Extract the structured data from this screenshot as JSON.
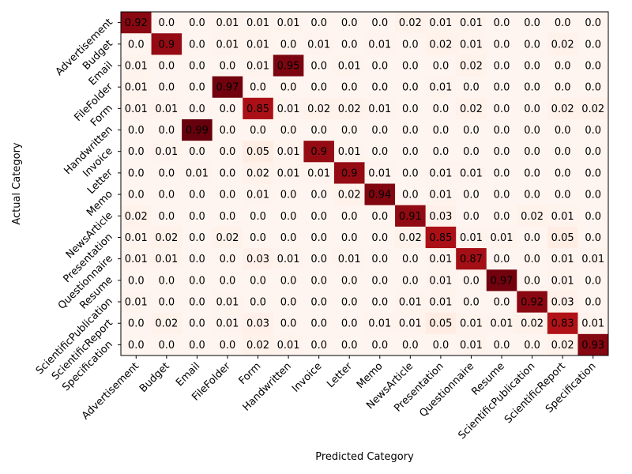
{
  "chart_data": {
    "type": "heatmap",
    "title": "",
    "xlabel": "Predicted Category",
    "ylabel": "Actual Category",
    "categories": [
      "Advertisement",
      "Budget",
      "Email",
      "FileFolder",
      "Form",
      "Handwritten",
      "Invoice",
      "Letter",
      "Memo",
      "NewsArticle",
      "Presentation",
      "Questionnaire",
      "Resume",
      "ScientificPublication",
      "ScientificReport",
      "Specification"
    ],
    "values": [
      [
        0.92,
        0.0,
        0.0,
        0.01,
        0.01,
        0.01,
        0.0,
        0.0,
        0.0,
        0.02,
        0.01,
        0.01,
        0.0,
        0.0,
        0.0,
        0.0
      ],
      [
        0.0,
        0.9,
        0.0,
        0.01,
        0.01,
        0.0,
        0.01,
        0.0,
        0.01,
        0.0,
        0.02,
        0.01,
        0.0,
        0.0,
        0.02,
        0.0
      ],
      [
        0.01,
        0.0,
        0.0,
        0.0,
        0.01,
        0.95,
        0.0,
        0.01,
        0.0,
        0.0,
        0.0,
        0.02,
        0.0,
        0.0,
        0.0,
        0.0
      ],
      [
        0.01,
        0.0,
        0.0,
        0.97,
        0.0,
        0.0,
        0.0,
        0.0,
        0.0,
        0.0,
        0.01,
        0.0,
        0.0,
        0.0,
        0.0,
        0.0
      ],
      [
        0.01,
        0.01,
        0.0,
        0.0,
        0.85,
        0.01,
        0.02,
        0.02,
        0.01,
        0.0,
        0.0,
        0.02,
        0.0,
        0.0,
        0.02,
        0.02
      ],
      [
        0.0,
        0.0,
        0.99,
        0.0,
        0.0,
        0.0,
        0.0,
        0.0,
        0.0,
        0.0,
        0.0,
        0.0,
        0.0,
        0.0,
        0.0,
        0.0
      ],
      [
        0.0,
        0.01,
        0.0,
        0.0,
        0.05,
        0.01,
        0.9,
        0.01,
        0.0,
        0.0,
        0.0,
        0.0,
        0.0,
        0.0,
        0.0,
        0.0
      ],
      [
        0.0,
        0.0,
        0.01,
        0.0,
        0.02,
        0.01,
        0.01,
        0.9,
        0.01,
        0.0,
        0.01,
        0.01,
        0.0,
        0.0,
        0.0,
        0.0
      ],
      [
        0.0,
        0.0,
        0.0,
        0.0,
        0.01,
        0.0,
        0.0,
        0.02,
        0.94,
        0.0,
        0.01,
        0.0,
        0.0,
        0.0,
        0.0,
        0.0
      ],
      [
        0.02,
        0.0,
        0.0,
        0.0,
        0.0,
        0.0,
        0.0,
        0.0,
        0.0,
        0.91,
        0.03,
        0.0,
        0.0,
        0.02,
        0.01,
        0.0
      ],
      [
        0.01,
        0.02,
        0.0,
        0.02,
        0.0,
        0.0,
        0.0,
        0.0,
        0.0,
        0.02,
        0.85,
        0.01,
        0.01,
        0.0,
        0.05,
        0.0
      ],
      [
        0.01,
        0.01,
        0.0,
        0.0,
        0.03,
        0.01,
        0.0,
        0.01,
        0.0,
        0.0,
        0.01,
        0.87,
        0.0,
        0.0,
        0.01,
        0.01
      ],
      [
        0.0,
        0.0,
        0.0,
        0.0,
        0.0,
        0.0,
        0.0,
        0.0,
        0.0,
        0.0,
        0.01,
        0.0,
        0.97,
        0.0,
        0.01,
        0.0
      ],
      [
        0.01,
        0.0,
        0.0,
        0.01,
        0.0,
        0.0,
        0.0,
        0.0,
        0.0,
        0.01,
        0.01,
        0.0,
        0.0,
        0.92,
        0.03,
        0.0
      ],
      [
        0.0,
        0.02,
        0.0,
        0.01,
        0.03,
        0.0,
        0.0,
        0.0,
        0.01,
        0.01,
        0.05,
        0.01,
        0.01,
        0.02,
        0.83,
        0.01
      ],
      [
        0.0,
        0.0,
        0.0,
        0.0,
        0.02,
        0.01,
        0.0,
        0.0,
        0.0,
        0.0,
        0.0,
        0.01,
        0.0,
        0.0,
        0.02,
        0.93
      ]
    ],
    "colormap": "Reds",
    "range": [
      0.0,
      0.99
    ],
    "grid": false
  }
}
